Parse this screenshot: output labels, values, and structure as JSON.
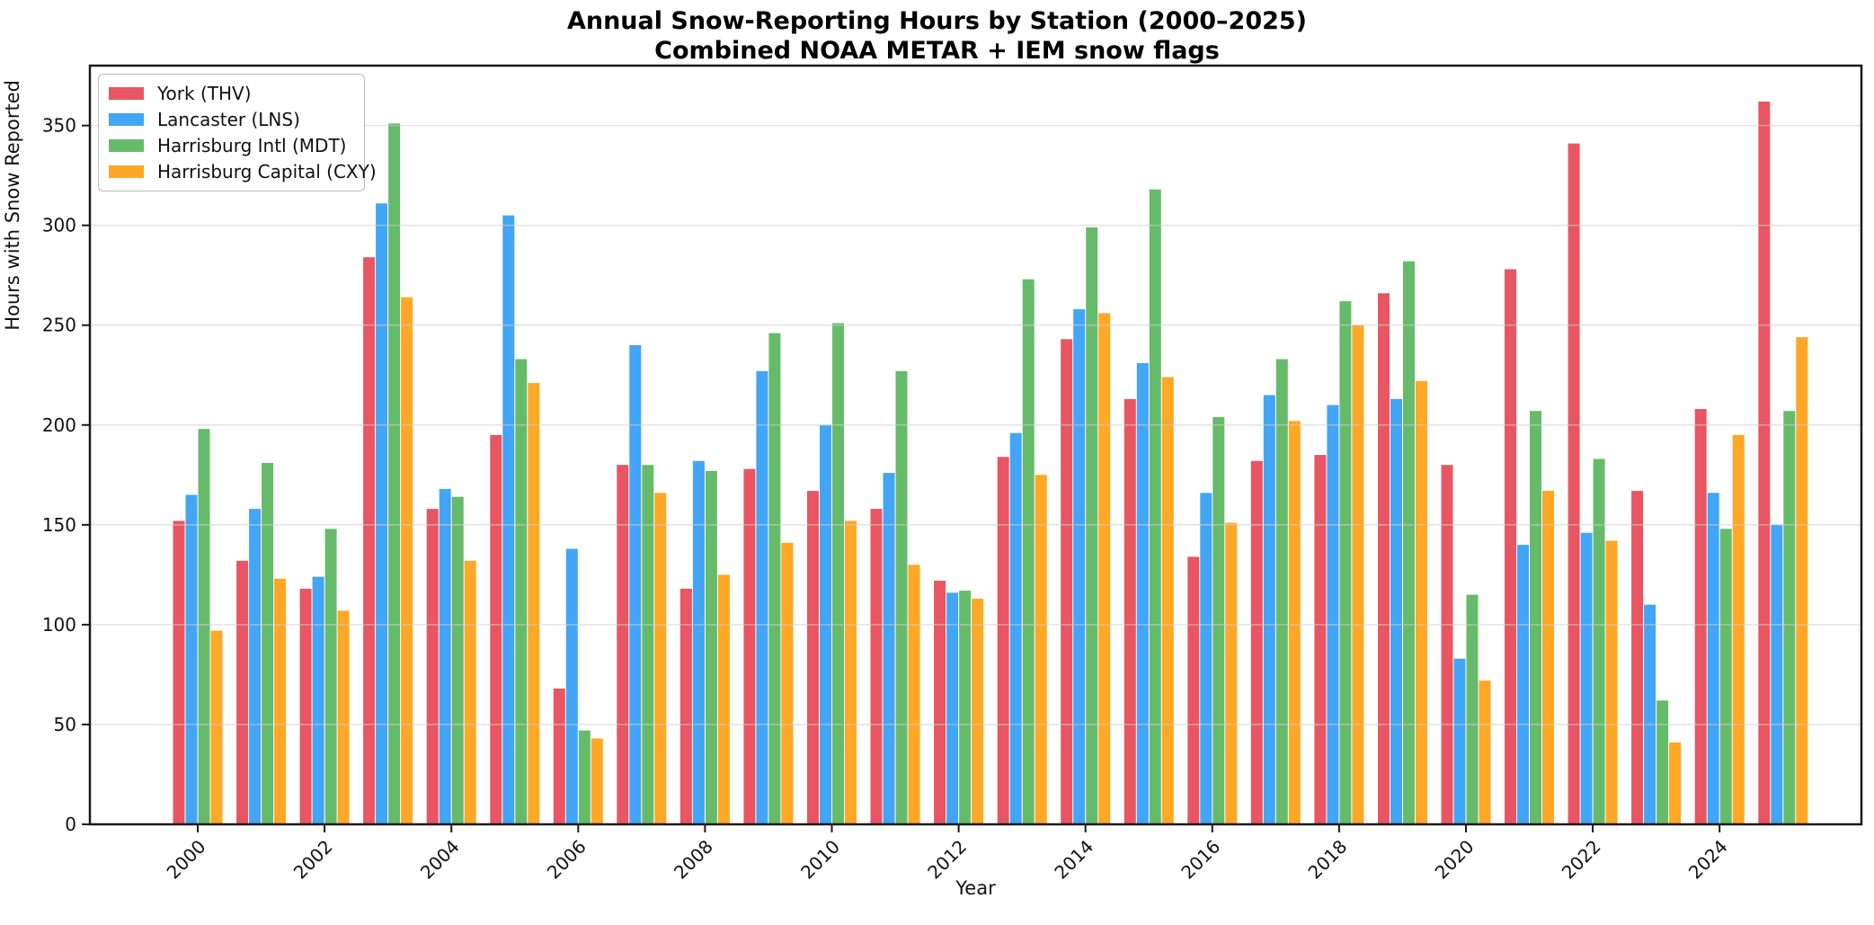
{
  "title": {
    "line1": "Annual Snow-Reporting Hours by Station (2000–2025)",
    "line2": "Combined NOAA METAR + IEM snow flags"
  },
  "chart_data": {
    "type": "bar",
    "title": "Annual Snow-Reporting Hours by Station (2000–2025)",
    "subtitle": "Combined NOAA METAR + IEM snow flags",
    "xlabel": "Year",
    "ylabel": "Hours with Snow Reported",
    "categories": [
      2000,
      2001,
      2002,
      2003,
      2004,
      2005,
      2006,
      2007,
      2008,
      2009,
      2010,
      2011,
      2012,
      2013,
      2014,
      2015,
      2016,
      2017,
      2018,
      2019,
      2020,
      2021,
      2022,
      2023,
      2024,
      2025
    ],
    "series": [
      {
        "name": "York (THV)",
        "color": "#e95562",
        "values": [
          152,
          132,
          118,
          284,
          158,
          195,
          68,
          180,
          118,
          178,
          167,
          158,
          122,
          184,
          243,
          213,
          134,
          182,
          185,
          266,
          180,
          278,
          341,
          167,
          208,
          362
        ]
      },
      {
        "name": "Lancaster (LNS)",
        "color": "#42a5f5",
        "values": [
          165,
          158,
          124,
          311,
          168,
          305,
          138,
          240,
          182,
          227,
          200,
          176,
          116,
          196,
          258,
          231,
          166,
          215,
          210,
          213,
          83,
          140,
          146,
          110,
          166,
          150
        ]
      },
      {
        "name": "Harrisburg Intl (MDT)",
        "color": "#66bb6a",
        "values": [
          198,
          181,
          148,
          351,
          164,
          233,
          47,
          180,
          177,
          246,
          251,
          227,
          117,
          273,
          299,
          318,
          204,
          233,
          262,
          282,
          115,
          207,
          183,
          62,
          148,
          207
        ]
      },
      {
        "name": "Harrisburg Capital (CXY)",
        "color": "#ffa726",
        "values": [
          97,
          123,
          107,
          264,
          132,
          221,
          43,
          166,
          125,
          141,
          152,
          130,
          113,
          175,
          256,
          224,
          151,
          202,
          250,
          222,
          72,
          167,
          142,
          41,
          195,
          244
        ]
      }
    ],
    "ylim": [
      0,
      380
    ],
    "yticks": [
      0,
      50,
      100,
      150,
      200,
      250,
      300,
      350
    ],
    "xticks": [
      2000,
      2002,
      2004,
      2006,
      2008,
      2010,
      2012,
      2014,
      2016,
      2018,
      2020,
      2022,
      2024
    ],
    "grid": true,
    "grid_color": "#cfcfcf",
    "spine_color": "#1a1a1a",
    "legend_position": "upper-left"
  }
}
